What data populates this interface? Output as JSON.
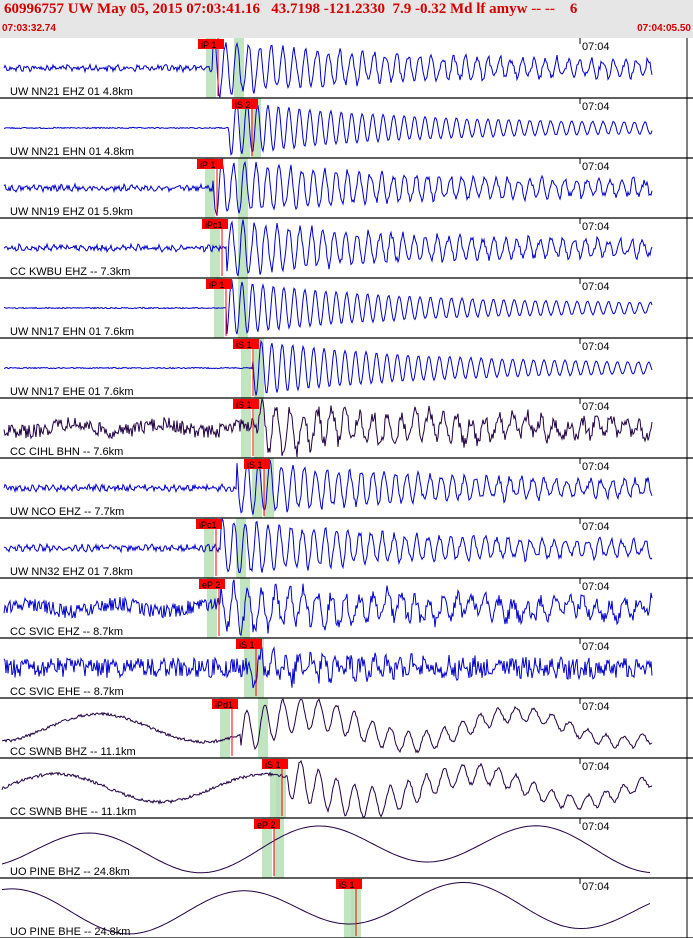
{
  "header": {
    "title": "60996757 UW May 05, 2015 07:03:41.16   43.7198 -121.2330  7.9 -0.32 Md lf amyw -- --    6",
    "start_time": "07:03:32.74",
    "end_time": "07:04:05.50",
    "text_color": "#d40000",
    "background": "#e6e6e6"
  },
  "time_tick_label": "07:04",
  "pick_color": "#ff0000",
  "window_color": "#b6dfb6",
  "trace_color_blue": "#0000cc",
  "trace_color_dark": "#220044",
  "traces": [
    {
      "label": "UW NN21 EHZ 01 4.8km",
      "pick": "iP 1",
      "color": "blue",
      "style": "noise"
    },
    {
      "label": "UW NN21 EHN 01 4.8km",
      "pick": "iS 2",
      "color": "blue",
      "style": "clean"
    },
    {
      "label": "UW NN19 EHZ 01 5.9km",
      "pick": "iP 1",
      "color": "blue",
      "style": "noise"
    },
    {
      "label": "CC KWBU EHZ -- 7.3km",
      "pick": "iPc1",
      "color": "blue",
      "style": "noise"
    },
    {
      "label": "UW NN17 EHN 01 7.6km",
      "pick": "iP 1",
      "color": "blue",
      "style": "clean"
    },
    {
      "label": "UW NN17 EHE 01 7.6km",
      "pick": "iS 1",
      "color": "blue",
      "style": "clean"
    },
    {
      "label": "CC CIHL BHN -- 7.6km",
      "pick": "iS 1",
      "color": "dark",
      "style": "heavy"
    },
    {
      "label": "UW NCO EHZ -- 7.7km",
      "pick": "iS 1",
      "color": "blue",
      "style": "noise"
    },
    {
      "label": "UW NN32 EHZ 01 7.8km",
      "pick": "iPc1",
      "color": "blue",
      "style": "noise"
    },
    {
      "label": "CC SVIC EHZ -- 8.7km",
      "pick": "eP 2",
      "color": "blue",
      "style": "heavy"
    },
    {
      "label": "CC SVIC EHE -- 8.7km",
      "pick": "iS 1",
      "color": "blue",
      "style": "dense"
    },
    {
      "label": "CC SWNB BHZ -- 11.1km",
      "pick": "iPd1",
      "color": "dark",
      "style": "wave"
    },
    {
      "label": "CC SWNB BHE -- 11.1km",
      "pick": "iS 1",
      "color": "dark",
      "style": "wave"
    },
    {
      "label": "UO PINE BHZ -- 24.8km",
      "pick": "eP 2",
      "color": "dark",
      "style": "smooth"
    },
    {
      "label": "UO PINE BHE -- 24.8km",
      "pick": "iS 1",
      "color": "dark",
      "style": "smooth"
    }
  ]
}
